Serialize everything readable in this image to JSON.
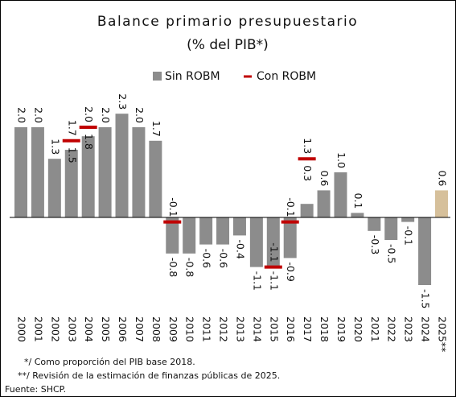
{
  "chart_data": {
    "type": "bar",
    "title": "Balance primario presupuestario",
    "subtitle": "(% del PIB*)",
    "categories": [
      "2000",
      "2001",
      "2002",
      "2003",
      "2004",
      "2005",
      "2006",
      "2007",
      "2008",
      "2009",
      "2010",
      "2011",
      "2012",
      "2013",
      "2014",
      "2015",
      "2016",
      "2017",
      "2018",
      "2019",
      "2020",
      "2021",
      "2022",
      "2023",
      "2024",
      "2025**"
    ],
    "series": [
      {
        "name": "Sin ROBM",
        "color": "#8c8c8c",
        "colors": [
          "#8c8c8c",
          "#8c8c8c",
          "#8c8c8c",
          "#8c8c8c",
          "#8c8c8c",
          "#8c8c8c",
          "#8c8c8c",
          "#8c8c8c",
          "#8c8c8c",
          "#8c8c8c",
          "#8c8c8c",
          "#8c8c8c",
          "#8c8c8c",
          "#8c8c8c",
          "#8c8c8c",
          "#8c8c8c",
          "#8c8c8c",
          "#8c8c8c",
          "#8c8c8c",
          "#8c8c8c",
          "#8c8c8c",
          "#8c8c8c",
          "#8c8c8c",
          "#8c8c8c",
          "#8c8c8c",
          "#d6c09b"
        ],
        "values": [
          2.0,
          2.0,
          1.3,
          1.5,
          1.8,
          2.0,
          2.3,
          2.0,
          1.7,
          -0.8,
          -0.8,
          -0.6,
          -0.6,
          -0.4,
          -1.1,
          -1.1,
          -0.9,
          0.3,
          0.6,
          1.0,
          0.1,
          -0.3,
          -0.5,
          -0.1,
          -1.5,
          0.6
        ],
        "value_labels": [
          "2.0",
          "2.0",
          "1.3",
          "1.5",
          "1.8",
          "2.0",
          "2.3",
          "2.0",
          "1.7",
          "-0.8",
          "-0.8",
          "-0.6",
          "-0.6",
          "-0.4",
          "-1.1",
          "-1.1",
          "-0.9",
          "0.3",
          "0.6",
          "1.0",
          "0.1",
          "-0.3",
          "-0.5",
          "-0.1",
          "-1.5",
          "0.6"
        ]
      },
      {
        "name": "Con ROBM",
        "color": "#c00000",
        "values": [
          null,
          null,
          null,
          1.7,
          2.0,
          null,
          null,
          null,
          null,
          -0.1,
          null,
          null,
          null,
          null,
          null,
          -1.1,
          -0.1,
          1.3,
          null,
          null,
          null,
          null,
          null,
          null,
          null,
          null
        ],
        "value_labels": [
          null,
          null,
          null,
          "1.7",
          "2.0",
          null,
          null,
          null,
          null,
          "-0.1",
          null,
          null,
          null,
          null,
          null,
          "-1.1",
          "-0.1",
          "1.3",
          null,
          null,
          null,
          null,
          null,
          null,
          null,
          null
        ]
      }
    ],
    "notes": [
      "*/ Como proporción del PIB base 2018.",
      "**/ Revisión de la estimación de finanzas públicas de 2025.",
      "Fuente: SHCP."
    ]
  }
}
